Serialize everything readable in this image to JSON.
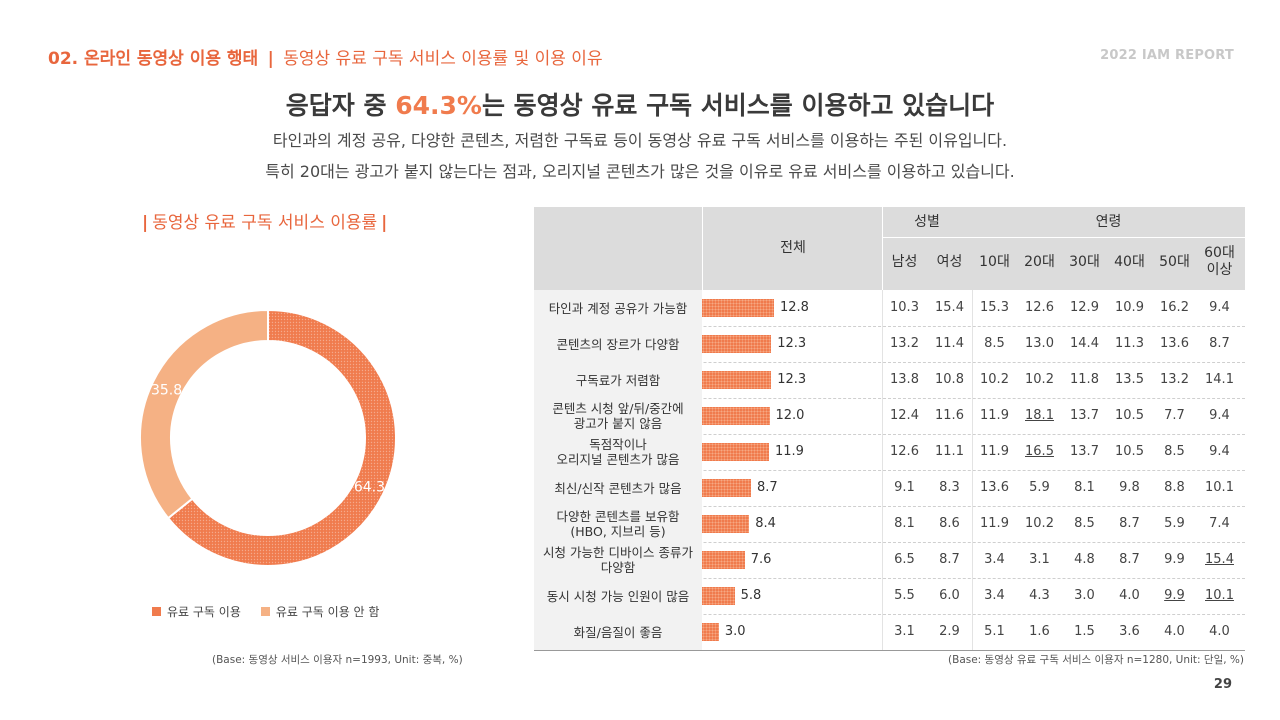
{
  "header": {
    "section": "02. 온라인 동영상 이용 행태",
    "separator": "|",
    "subtitle": "동영상 유료 구독 서비스 이용률 및 이용 이유",
    "report": "2022 IAM REPORT"
  },
  "headline": {
    "prefix": "응답자 중 ",
    "highlight": "64.3%",
    "suffix": "는 동영상 유료 구독 서비스를 이용하고 있습니다"
  },
  "description": [
    "타인과의 계정 공유, 다양한 콘텐츠, 저렴한 구독료 등이 동영상 유료 구독 서비스를 이용하는 주된 이유입니다.",
    "특히 20대는 광고가 붙지 않는다는 점과, 오리지널 콘텐츠가 많은 것을 이유로 유료 서비스를 이용하고 있습니다."
  ],
  "chart_data": [
    {
      "type": "pie",
      "title": "동영상 유료 구독 서비스 이용률",
      "categories": [
        "유료 구독 이용",
        "유료 구독 이용 안 함"
      ],
      "values": [
        64.3,
        35.8
      ],
      "colors": [
        "#f07b4d",
        "#f5b184"
      ],
      "legend": "bottom"
    },
    {
      "type": "table",
      "column_groups": {
        "total": "전체",
        "gender": "성별",
        "age": "연령"
      },
      "columns": [
        "남성",
        "여성",
        "10대",
        "20대",
        "30대",
        "40대",
        "50대",
        "60대 이상"
      ],
      "rows": [
        {
          "label": "타인과 계정 공유가 가능함",
          "total": 12.8,
          "values": [
            10.3,
            15.4,
            15.3,
            12.6,
            12.9,
            10.9,
            16.2,
            9.4
          ],
          "underline": []
        },
        {
          "label": "콘텐츠의 장르가 다양함",
          "total": 12.3,
          "values": [
            13.2,
            11.4,
            8.5,
            13.0,
            14.4,
            11.3,
            13.6,
            8.7
          ],
          "underline": []
        },
        {
          "label": "구독료가 저렴함",
          "total": 12.3,
          "values": [
            13.8,
            10.8,
            10.2,
            10.2,
            11.8,
            13.5,
            13.2,
            14.1
          ],
          "underline": []
        },
        {
          "label": "콘텐츠 시청 앞/뒤/중간에\n광고가 붙지 않음",
          "total": 12.0,
          "values": [
            12.4,
            11.6,
            11.9,
            18.1,
            13.7,
            10.5,
            7.7,
            9.4
          ],
          "underline": [
            3
          ]
        },
        {
          "label": "독점작이나\n오리지널 콘텐츠가 많음",
          "total": 11.9,
          "values": [
            12.6,
            11.1,
            11.9,
            16.5,
            13.7,
            10.5,
            8.5,
            9.4
          ],
          "underline": [
            3
          ]
        },
        {
          "label": "최신/신작 콘텐츠가 많음",
          "total": 8.7,
          "values": [
            9.1,
            8.3,
            13.6,
            5.9,
            8.1,
            9.8,
            8.8,
            10.1
          ],
          "underline": []
        },
        {
          "label": "다양한 콘텐츠를 보유함\n(HBO, 지브리 등)",
          "total": 8.4,
          "values": [
            8.1,
            8.6,
            11.9,
            10.2,
            8.5,
            8.7,
            5.9,
            7.4
          ],
          "underline": []
        },
        {
          "label": "시청 가능한 디바이스 종류가\n다양함",
          "total": 7.6,
          "values": [
            6.5,
            8.7,
            3.4,
            3.1,
            4.8,
            8.7,
            9.9,
            15.4
          ],
          "underline": [
            7
          ]
        },
        {
          "label": "동시 시청 가능 인원이 많음",
          "total": 5.8,
          "values": [
            5.5,
            6.0,
            3.4,
            4.3,
            3.0,
            4.0,
            9.9,
            10.1
          ],
          "underline": [
            6,
            7
          ]
        },
        {
          "label": "화질/음질이 좋음",
          "total": 3.0,
          "values": [
            3.1,
            2.9,
            5.1,
            1.6,
            1.5,
            3.6,
            4.0,
            4.0
          ],
          "underline": []
        }
      ]
    }
  ],
  "footnotes": {
    "left": "(Base: 동영상 서비스 이용자 n=1993, Unit: 중복, %)",
    "right": "(Base: 동영상 유료 구독 서비스 이용자 n=1280, Unit: 단일, %)"
  },
  "page_number": "29"
}
